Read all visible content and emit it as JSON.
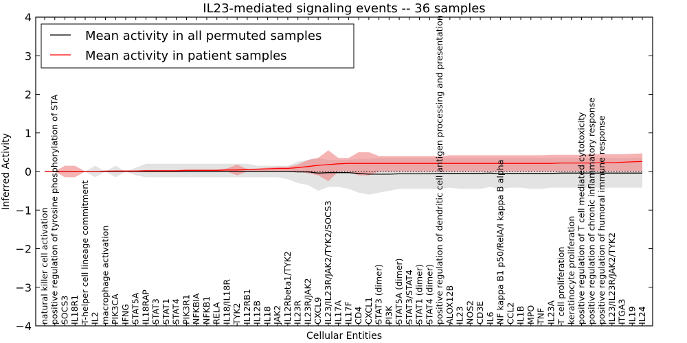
{
  "chart_data": {
    "type": "line",
    "title": "IL23-mediated signaling events -- 36 samples",
    "xlabel": "Cellular Entities",
    "ylabel": "Inferred Activity",
    "ylim": [
      -4,
      4
    ],
    "yticks": [
      -4,
      -3,
      -2,
      -1,
      0,
      1,
      2,
      3,
      4
    ],
    "ytick_labels": [
      "−4",
      "−3",
      "−2",
      "−1",
      "0",
      "1",
      "2",
      "3",
      "4"
    ],
    "grid": false,
    "legend_position": "top-left",
    "categories": [
      "natural killer cell activation",
      "positive regulation of tyrosine phosphorylation of STA",
      "SOCS3",
      "IL18R1",
      "T-helper cell lineage commitment",
      "IL2",
      "macrophage activation",
      "PIK3CA",
      "IFNG",
      "STAT5A",
      "IL18RAP",
      "STAT3",
      "STAT1",
      "STAT4",
      "PIK3R1",
      "NFKBIA",
      "NFKB1",
      "RELA",
      "IL18/IL18R",
      "TYK2",
      "IL12RB1",
      "IL12B",
      "IL18",
      "JAK2",
      "IL12Rbeta1/TYK2",
      "IL23R",
      "IL23R/JAK2",
      "CXCL9",
      "IL23/IL23R/JAK2/TYK2/SOCS3",
      "IL17A",
      "IL17F",
      "CD4",
      "CXCL1",
      "STAT3 (dimer)",
      "PI3K",
      "STAT5A (dimer)",
      "STAT3/STAT4",
      "STAT1 (dimer)",
      "STAT4 (dimer)",
      "positive regulation of dendritic cell antigen processing and presentation",
      "ALOX12B",
      "IL23",
      "NOS2",
      "CD3E",
      "IL6",
      "NF kappa B1 p50/RelA/I kappa B alpha",
      "CCL2",
      "IL1B",
      "MPO",
      "TNF",
      "IL23A",
      "T cell proliferation",
      "keratinocyte proliferation",
      "positive regulation of T cell mediated cytotoxicity",
      "positive regulation of chronic inflammatory response",
      "positive regulation of humoral immune response",
      "IL23/IL23R/JAK2/TYK2",
      "ITGA3",
      "IL19",
      "IL24"
    ],
    "series": [
      {
        "name": "Mean activity in all permuted samples",
        "color": "#000000",
        "band_color": "#c8c8c8",
        "values": [
          0,
          0,
          0,
          0,
          0,
          0,
          0,
          0,
          0,
          0,
          0,
          0,
          0,
          0,
          0,
          0,
          0,
          0,
          0,
          0,
          0,
          0,
          0,
          0,
          0,
          -0.01,
          -0.01,
          -0.04,
          -0.03,
          -0.03,
          -0.03,
          -0.05,
          -0.07,
          -0.07,
          -0.07,
          -0.06,
          -0.06,
          -0.06,
          -0.06,
          -0.05,
          -0.05,
          -0.05,
          -0.05,
          -0.05,
          -0.04,
          -0.06,
          -0.05,
          -0.05,
          -0.05,
          -0.05,
          -0.05,
          -0.04,
          -0.04,
          -0.04,
          -0.04,
          -0.04,
          -0.04,
          -0.04,
          -0.04,
          -0.04
        ],
        "upper": [
          0,
          0,
          0,
          0,
          0,
          0.15,
          0,
          0.15,
          0,
          0.1,
          0.2,
          0.2,
          0.2,
          0.2,
          0.2,
          0.2,
          0.2,
          0.2,
          0.2,
          0.2,
          0.2,
          0.15,
          0.15,
          0.15,
          0.15,
          0.25,
          0.3,
          0.35,
          0.3,
          0.3,
          0.3,
          0.33,
          0.33,
          0.35,
          0.35,
          0.35,
          0.35,
          0.35,
          0.35,
          0.35,
          0.35,
          0.35,
          0.35,
          0.35,
          0.35,
          0.35,
          0.35,
          0.35,
          0.35,
          0.35,
          0.35,
          0.35,
          0.35,
          0.35,
          0.35,
          0.35,
          0.35,
          0.35,
          0.35,
          0.35
        ],
        "lower": [
          0,
          0,
          0,
          0,
          0,
          -0.15,
          0,
          -0.15,
          0,
          -0.1,
          -0.15,
          -0.15,
          -0.15,
          -0.15,
          -0.15,
          -0.15,
          -0.15,
          -0.15,
          -0.15,
          -0.15,
          -0.15,
          -0.15,
          -0.15,
          -0.15,
          -0.2,
          -0.3,
          -0.35,
          -0.5,
          -0.4,
          -0.4,
          -0.45,
          -0.55,
          -0.6,
          -0.55,
          -0.5,
          -0.45,
          -0.45,
          -0.45,
          -0.45,
          -0.45,
          -0.42,
          -0.45,
          -0.45,
          -0.45,
          -0.4,
          -0.45,
          -0.42,
          -0.42,
          -0.45,
          -0.45,
          -0.42,
          -0.42,
          -0.42,
          -0.42,
          -0.42,
          -0.42,
          -0.42,
          -0.42,
          -0.42,
          -0.42
        ]
      },
      {
        "name": "Mean activity in patient samples",
        "color": "#ff0000",
        "band_color": "#f08080",
        "values": [
          0,
          0,
          0,
          0,
          0,
          0,
          0.01,
          0.01,
          0.01,
          0.01,
          0.02,
          0.02,
          0.02,
          0.02,
          0.03,
          0.03,
          0.03,
          0.03,
          0.04,
          0.04,
          0.05,
          0.06,
          0.07,
          0.08,
          0.08,
          0.1,
          0.13,
          0.16,
          0.18,
          0.2,
          0.21,
          0.21,
          0.21,
          0.21,
          0.21,
          0.21,
          0.21,
          0.21,
          0.21,
          0.21,
          0.21,
          0.21,
          0.21,
          0.21,
          0.21,
          0.21,
          0.21,
          0.21,
          0.21,
          0.21,
          0.21,
          0.22,
          0.22,
          0.22,
          0.22,
          0.23,
          0.23,
          0.24,
          0.25,
          0.26
        ],
        "upper": [
          0,
          0,
          0.15,
          0.15,
          0,
          0,
          0.02,
          0.03,
          0.03,
          0.03,
          0.04,
          0.04,
          0.04,
          0.04,
          0.05,
          0.05,
          0.05,
          0.05,
          0.08,
          0.18,
          0.06,
          0.08,
          0.1,
          0.12,
          0.12,
          0.18,
          0.3,
          0.35,
          0.55,
          0.35,
          0.35,
          0.5,
          0.5,
          0.4,
          0.4,
          0.4,
          0.4,
          0.4,
          0.4,
          0.4,
          0.42,
          0.42,
          0.42,
          0.42,
          0.42,
          0.42,
          0.42,
          0.42,
          0.42,
          0.42,
          0.43,
          0.43,
          0.43,
          0.43,
          0.45,
          0.45,
          0.45,
          0.45,
          0.46,
          0.47
        ],
        "lower": [
          0,
          0,
          -0.15,
          -0.15,
          0,
          0,
          0,
          0,
          0,
          0,
          0,
          0,
          0,
          0,
          0,
          0,
          0,
          0,
          0,
          -0.1,
          0,
          0,
          0,
          0,
          0,
          0,
          -0.05,
          -0.1,
          -0.25,
          0,
          0,
          -0.1,
          -0.1,
          0,
          0,
          0,
          0,
          0,
          0,
          0,
          0,
          0,
          0,
          0,
          0,
          0,
          0,
          0,
          0,
          0,
          0,
          0,
          0,
          0,
          0,
          0,
          0,
          0,
          0,
          0
        ]
      }
    ],
    "reference_line": {
      "y": 0,
      "style": "dotted"
    }
  }
}
